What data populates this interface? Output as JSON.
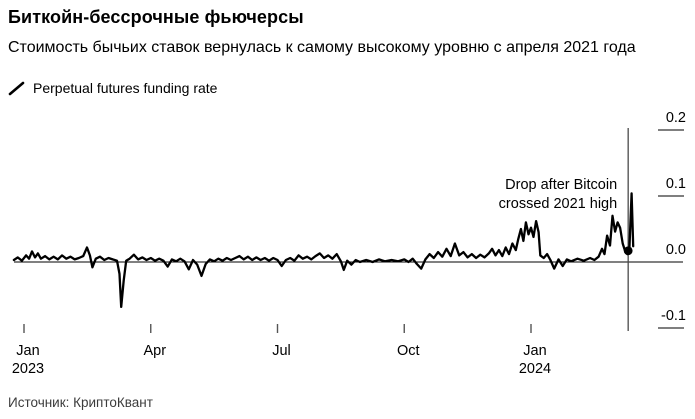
{
  "header": {
    "title": "Биткойн-бессрочные фьючерсы",
    "subtitle": "Стоимость бычьих ставок вернулась к самому высокому уровню с апреля 2021 года"
  },
  "legend": {
    "label": "Perpetual futures funding rate",
    "marker_color": "#000000"
  },
  "footer": {
    "source": "Источник: КриптоКвант"
  },
  "colors": {
    "line": "#000000",
    "zero_line": "#000000",
    "tick": "#555555",
    "event_line": "#4a4a4a",
    "text": "#000000"
  },
  "chart_data": {
    "type": "line",
    "title": "Биткойн-бессрочные фьючерсы",
    "subtitle": "Стоимость бычьих ставок вернулась к самому высокому уровню с апреля 2021 года",
    "legend_entries": [
      "Perpetual futures funding rate"
    ],
    "legend_position": "top-left",
    "grid": "zero-line-only",
    "y_axis": {
      "side": "right",
      "tick_values": [
        0.2,
        0.1,
        0.0,
        -0.1
      ],
      "tick_labels": [
        "0.2",
        "0.1",
        "0.0",
        "-0.1"
      ],
      "range": [
        -0.13,
        0.235
      ]
    },
    "x_axis": {
      "unit": "months since Jan 2023",
      "tick_months": [
        0,
        3,
        6,
        9,
        12
      ],
      "tick_labels": [
        [
          "Jan",
          "2023"
        ],
        [
          "Apr"
        ],
        [
          "Jul"
        ],
        [
          "Oct"
        ],
        [
          "Jan",
          "2024"
        ]
      ],
      "range_months": [
        -0.35,
        15.1
      ]
    },
    "annotation": {
      "lines": [
        "Drop after Bitcoin",
        "crossed 2021 high"
      ],
      "event_line_month": 14.3,
      "end_dot": {
        "x": 14.3,
        "v": 0.017
      }
    },
    "series": [
      {
        "name": "Perpetual futures funding rate",
        "points": [
          [
            -0.24,
            0.003
          ],
          [
            -0.15,
            0.007
          ],
          [
            -0.05,
            0.002
          ],
          [
            0.05,
            0.01
          ],
          [
            0.12,
            0.005
          ],
          [
            0.19,
            0.016
          ],
          [
            0.26,
            0.007
          ],
          [
            0.33,
            0.013
          ],
          [
            0.4,
            0.005
          ],
          [
            0.5,
            0.009
          ],
          [
            0.6,
            0.004
          ],
          [
            0.7,
            0.008
          ],
          [
            0.8,
            0.004
          ],
          [
            0.9,
            0.01
          ],
          [
            1.0,
            0.005
          ],
          [
            1.1,
            0.008
          ],
          [
            1.2,
            0.004
          ],
          [
            1.3,
            0.006
          ],
          [
            1.4,
            0.009
          ],
          [
            1.49,
            0.022
          ],
          [
            1.56,
            0.01
          ],
          [
            1.62,
            -0.008
          ],
          [
            1.7,
            0.005
          ],
          [
            1.8,
            0.008
          ],
          [
            1.9,
            0.003
          ],
          [
            2.0,
            0.006
          ],
          [
            2.1,
            0.004
          ],
          [
            2.2,
            0.002
          ],
          [
            2.26,
            -0.018
          ],
          [
            2.3,
            -0.068
          ],
          [
            2.36,
            -0.028
          ],
          [
            2.42,
            0.002
          ],
          [
            2.5,
            0.005
          ],
          [
            2.6,
            0.011
          ],
          [
            2.7,
            0.004
          ],
          [
            2.8,
            0.007
          ],
          [
            2.9,
            0.003
          ],
          [
            3.0,
            0.006
          ],
          [
            3.1,
            0.002
          ],
          [
            3.2,
            0.005
          ],
          [
            3.3,
            0.002
          ],
          [
            3.4,
            -0.007
          ],
          [
            3.5,
            0.004
          ],
          [
            3.6,
            0.001
          ],
          [
            3.7,
            0.005
          ],
          [
            3.8,
            0.001
          ],
          [
            3.9,
            -0.011
          ],
          [
            4.0,
            0.003
          ],
          [
            4.1,
            -0.004
          ],
          [
            4.2,
            -0.021
          ],
          [
            4.3,
            -0.003
          ],
          [
            4.4,
            0.004
          ],
          [
            4.5,
            0.001
          ],
          [
            4.6,
            0.005
          ],
          [
            4.7,
            0.002
          ],
          [
            4.8,
            0.006
          ],
          [
            4.9,
            0.003
          ],
          [
            5.0,
            0.006
          ],
          [
            5.1,
            0.009
          ],
          [
            5.2,
            0.004
          ],
          [
            5.3,
            0.008
          ],
          [
            5.4,
            0.003
          ],
          [
            5.5,
            0.007
          ],
          [
            5.6,
            0.003
          ],
          [
            5.7,
            0.006
          ],
          [
            5.8,
            0.002
          ],
          [
            5.9,
            0.006
          ],
          [
            6.0,
            0.003
          ],
          [
            6.1,
            -0.006
          ],
          [
            6.2,
            0.003
          ],
          [
            6.3,
            0.006
          ],
          [
            6.4,
            0.002
          ],
          [
            6.5,
            0.01
          ],
          [
            6.6,
            0.005
          ],
          [
            6.7,
            0.008
          ],
          [
            6.8,
            0.004
          ],
          [
            6.9,
            0.009
          ],
          [
            7.0,
            0.013
          ],
          [
            7.1,
            0.006
          ],
          [
            7.2,
            0.01
          ],
          [
            7.3,
            0.005
          ],
          [
            7.4,
            0.012
          ],
          [
            7.5,
            0.001
          ],
          [
            7.57,
            -0.012
          ],
          [
            7.65,
            0.002
          ],
          [
            7.75,
            -0.004
          ],
          [
            7.85,
            0.003
          ],
          [
            7.95,
            0.0
          ],
          [
            8.1,
            0.003
          ],
          [
            8.25,
            0.0
          ],
          [
            8.4,
            0.004
          ],
          [
            8.55,
            0.001
          ],
          [
            8.7,
            0.003
          ],
          [
            8.85,
            0.001
          ],
          [
            9.0,
            0.004
          ],
          [
            9.1,
            0.0
          ],
          [
            9.2,
            0.005
          ],
          [
            9.3,
            -0.003
          ],
          [
            9.4,
            -0.01
          ],
          [
            9.5,
            0.004
          ],
          [
            9.6,
            0.012
          ],
          [
            9.7,
            0.006
          ],
          [
            9.8,
            0.015
          ],
          [
            9.9,
            0.008
          ],
          [
            10.0,
            0.02
          ],
          [
            10.1,
            0.009
          ],
          [
            10.2,
            0.028
          ],
          [
            10.3,
            0.01
          ],
          [
            10.4,
            0.015
          ],
          [
            10.5,
            0.007
          ],
          [
            10.6,
            0.012
          ],
          [
            10.7,
            0.006
          ],
          [
            10.8,
            0.011
          ],
          [
            10.9,
            0.007
          ],
          [
            11.0,
            0.013
          ],
          [
            11.08,
            0.02
          ],
          [
            11.16,
            0.01
          ],
          [
            11.24,
            0.018
          ],
          [
            11.32,
            0.009
          ],
          [
            11.4,
            0.022
          ],
          [
            11.48,
            0.012
          ],
          [
            11.56,
            0.028
          ],
          [
            11.64,
            0.018
          ],
          [
            11.7,
            0.035
          ],
          [
            11.76,
            0.05
          ],
          [
            11.82,
            0.032
          ],
          [
            11.88,
            0.06
          ],
          [
            11.94,
            0.042
          ],
          [
            12.0,
            0.052
          ],
          [
            12.06,
            0.038
          ],
          [
            12.12,
            0.062
          ],
          [
            12.18,
            0.045
          ],
          [
            12.22,
            0.01
          ],
          [
            12.3,
            0.006
          ],
          [
            12.38,
            0.012
          ],
          [
            12.46,
            0.003
          ],
          [
            12.55,
            -0.01
          ],
          [
            12.65,
            0.004
          ],
          [
            12.75,
            -0.006
          ],
          [
            12.85,
            0.004
          ],
          [
            12.95,
            0.001
          ],
          [
            13.1,
            0.005
          ],
          [
            13.25,
            0.002
          ],
          [
            13.4,
            0.006
          ],
          [
            13.5,
            0.003
          ],
          [
            13.6,
            0.008
          ],
          [
            13.68,
            0.02
          ],
          [
            13.74,
            0.012
          ],
          [
            13.8,
            0.04
          ],
          [
            13.87,
            0.025
          ],
          [
            13.93,
            0.07
          ],
          [
            13.99,
            0.046
          ],
          [
            14.05,
            0.06
          ],
          [
            14.11,
            0.052
          ],
          [
            14.17,
            0.028
          ],
          [
            14.23,
            0.016
          ],
          [
            14.28,
            0.012
          ],
          [
            14.33,
            0.02
          ],
          [
            14.38,
            0.104
          ],
          [
            14.42,
            0.024
          ]
        ]
      }
    ]
  }
}
